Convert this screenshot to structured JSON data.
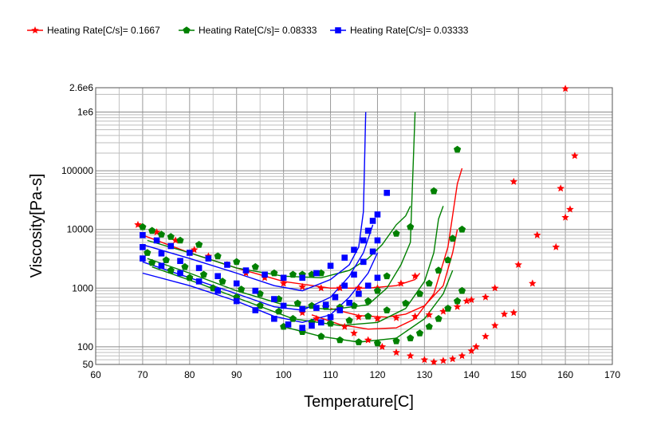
{
  "chart_data": {
    "type": "scatter",
    "xlabel": "Temperature[C]",
    "ylabel": "Viscosity[Pa-s]",
    "x_range": [
      60,
      170
    ],
    "y_range": [
      50,
      2600000
    ],
    "y_scale": "log",
    "grid": true,
    "legend_placement": "top-left",
    "x_ticks": [
      "60",
      "70",
      "80",
      "90",
      "100",
      "110",
      "120",
      "130",
      "140",
      "150",
      "160",
      "170"
    ],
    "y_ticks": [
      {
        "value": 50,
        "label": "50"
      },
      {
        "value": 100,
        "label": "100"
      },
      {
        "value": 1000,
        "label": "1000"
      },
      {
        "value": 10000,
        "label": "10000"
      },
      {
        "value": 100000,
        "label": "100000"
      },
      {
        "value": 1000000,
        "label": "1e6"
      },
      {
        "value": 2600000,
        "label": "2.6e6"
      }
    ],
    "series": [
      {
        "name": "Heating Rate[C/s]= 0.1667",
        "color": "#ff0000",
        "marker": "star",
        "points": [
          [
            69,
            12000
          ],
          [
            73,
            9000
          ],
          [
            77,
            6500
          ],
          [
            81,
            4500
          ],
          [
            84,
            3500
          ],
          [
            88,
            2500
          ],
          [
            92,
            1800
          ],
          [
            96,
            1500
          ],
          [
            100,
            1200
          ],
          [
            104,
            1050
          ],
          [
            108,
            1000
          ],
          [
            112,
            1000
          ],
          [
            116,
            1000
          ],
          [
            120,
            1000
          ],
          [
            125,
            1200
          ],
          [
            128,
            1600
          ],
          [
            104,
            380
          ],
          [
            107,
            300
          ],
          [
            110,
            250
          ],
          [
            113,
            220
          ],
          [
            115,
            170
          ],
          [
            118,
            130
          ],
          [
            121,
            100
          ],
          [
            124,
            80
          ],
          [
            127,
            70
          ],
          [
            130,
            60
          ],
          [
            132,
            55
          ],
          [
            134,
            58
          ],
          [
            136,
            62
          ],
          [
            138,
            70
          ],
          [
            140,
            85
          ],
          [
            141,
            100
          ],
          [
            143,
            150
          ],
          [
            145,
            230
          ],
          [
            147,
            360
          ],
          [
            149,
            380
          ],
          [
            150,
            2500
          ],
          [
            149,
            65000
          ],
          [
            112,
            450
          ],
          [
            116,
            320
          ],
          [
            120,
            300
          ],
          [
            124,
            310
          ],
          [
            128,
            330
          ],
          [
            131,
            350
          ],
          [
            134,
            400
          ],
          [
            137,
            480
          ],
          [
            139,
            600
          ],
          [
            140,
            630
          ],
          [
            143,
            700
          ],
          [
            145,
            1000
          ],
          [
            153,
            1200
          ],
          [
            154,
            8000
          ],
          [
            158,
            5000
          ],
          [
            160,
            16000
          ],
          [
            161,
            22000
          ],
          [
            159,
            50000
          ],
          [
            162,
            180000
          ],
          [
            160,
            2500000
          ]
        ]
      },
      {
        "name": "Heating Rate[C/s]= 0.08333",
        "color": "#008000",
        "marker": "pentagon",
        "points": [
          [
            70,
            11000
          ],
          [
            72,
            9500
          ],
          [
            74,
            8200
          ],
          [
            76,
            7500
          ],
          [
            78,
            6500
          ],
          [
            82,
            5500
          ],
          [
            86,
            3500
          ],
          [
            90,
            2800
          ],
          [
            94,
            2300
          ],
          [
            98,
            1800
          ],
          [
            102,
            1700
          ],
          [
            104,
            1700
          ],
          [
            106,
            1700
          ],
          [
            108,
            1800
          ],
          [
            71,
            4000
          ],
          [
            75,
            3000
          ],
          [
            79,
            2300
          ],
          [
            83,
            1700
          ],
          [
            87,
            1300
          ],
          [
            91,
            950
          ],
          [
            95,
            800
          ],
          [
            99,
            650
          ],
          [
            103,
            550
          ],
          [
            106,
            500
          ],
          [
            109,
            480
          ],
          [
            112,
            470
          ],
          [
            115,
            500
          ],
          [
            118,
            600
          ],
          [
            120,
            900
          ],
          [
            122,
            1600
          ],
          [
            124,
            8500
          ],
          [
            127,
            11000
          ],
          [
            72,
            2700
          ],
          [
            76,
            2000
          ],
          [
            80,
            1500
          ],
          [
            85,
            1000
          ],
          [
            90,
            700
          ],
          [
            95,
            500
          ],
          [
            99,
            400
          ],
          [
            102,
            300
          ],
          [
            106,
            260
          ],
          [
            110,
            250
          ],
          [
            114,
            280
          ],
          [
            118,
            330
          ],
          [
            122,
            420
          ],
          [
            126,
            550
          ],
          [
            129,
            800
          ],
          [
            131,
            1200
          ],
          [
            133,
            2000
          ],
          [
            135,
            3000
          ],
          [
            136,
            7000
          ],
          [
            138,
            10000
          ],
          [
            137,
            230000
          ],
          [
            132,
            45000
          ],
          [
            100,
            220
          ],
          [
            104,
            180
          ],
          [
            108,
            150
          ],
          [
            112,
            130
          ],
          [
            116,
            120
          ],
          [
            120,
            115
          ],
          [
            124,
            125
          ],
          [
            127,
            140
          ],
          [
            129,
            170
          ],
          [
            131,
            220
          ],
          [
            133,
            300
          ],
          [
            135,
            450
          ],
          [
            137,
            600
          ],
          [
            138,
            900
          ]
        ]
      },
      {
        "name": "Heating Rate[C/s]= 0.03333",
        "color": "#0000ff",
        "marker": "square",
        "points": [
          [
            70,
            8000
          ],
          [
            73,
            6500
          ],
          [
            76,
            5200
          ],
          [
            80,
            4000
          ],
          [
            84,
            3200
          ],
          [
            88,
            2500
          ],
          [
            92,
            2000
          ],
          [
            96,
            1700
          ],
          [
            100,
            1500
          ],
          [
            104,
            1500
          ],
          [
            107,
            1800
          ],
          [
            110,
            2400
          ],
          [
            113,
            3300
          ],
          [
            115,
            4500
          ],
          [
            117,
            6500
          ],
          [
            118,
            9500
          ],
          [
            119,
            14000
          ],
          [
            120,
            18000
          ],
          [
            122,
            42000
          ],
          [
            70,
            5000
          ],
          [
            74,
            3900
          ],
          [
            78,
            2900
          ],
          [
            82,
            2200
          ],
          [
            86,
            1600
          ],
          [
            90,
            1200
          ],
          [
            94,
            900
          ],
          [
            98,
            650
          ],
          [
            100,
            500
          ],
          [
            104,
            440
          ],
          [
            107,
            460
          ],
          [
            109,
            520
          ],
          [
            111,
            700
          ],
          [
            113,
            1100
          ],
          [
            115,
            1700
          ],
          [
            117,
            2800
          ],
          [
            119,
            4200
          ],
          [
            120,
            6500
          ],
          [
            70,
            3200
          ],
          [
            74,
            2400
          ],
          [
            78,
            1800
          ],
          [
            82,
            1300
          ],
          [
            86,
            900
          ],
          [
            90,
            600
          ],
          [
            94,
            420
          ],
          [
            98,
            300
          ],
          [
            101,
            240
          ],
          [
            104,
            210
          ],
          [
            106,
            230
          ],
          [
            108,
            260
          ],
          [
            110,
            320
          ],
          [
            112,
            420
          ],
          [
            114,
            560
          ],
          [
            116,
            800
          ],
          [
            118,
            1100
          ],
          [
            120,
            1500
          ]
        ]
      }
    ],
    "lines": [
      {
        "color": "#ff0000",
        "points": [
          [
            70,
            8000
          ],
          [
            80,
            4000
          ],
          [
            90,
            2200
          ],
          [
            100,
            1300
          ],
          [
            110,
            1000
          ],
          [
            118,
            1000
          ],
          [
            124,
            1100
          ],
          [
            128,
            1400
          ],
          [
            129,
            1800
          ]
        ]
      },
      {
        "color": "#ff0000",
        "points": [
          [
            106,
            350
          ],
          [
            112,
            240
          ],
          [
            118,
            200
          ],
          [
            124,
            210
          ],
          [
            128,
            300
          ],
          [
            132,
            800
          ],
          [
            135,
            5000
          ],
          [
            137,
            60000
          ],
          [
            138,
            110000
          ]
        ]
      },
      {
        "color": "#ff0000",
        "points": [
          [
            110,
            450
          ],
          [
            116,
            340
          ],
          [
            122,
            320
          ],
          [
            126,
            360
          ],
          [
            130,
            500
          ],
          [
            134,
            1100
          ],
          [
            136,
            4000
          ],
          [
            137,
            10000
          ]
        ]
      },
      {
        "color": "#008000",
        "points": [
          [
            71,
            6500
          ],
          [
            80,
            4000
          ],
          [
            90,
            2200
          ],
          [
            100,
            1600
          ],
          [
            108,
            1500
          ],
          [
            114,
            2000
          ],
          [
            118,
            3200
          ],
          [
            121,
            5500
          ],
          [
            124,
            12000
          ],
          [
            126,
            17000
          ],
          [
            127,
            25000
          ]
        ]
      },
      {
        "color": "#008000",
        "points": [
          [
            71,
            3200
          ],
          [
            80,
            1800
          ],
          [
            90,
            900
          ],
          [
            100,
            520
          ],
          [
            110,
            430
          ],
          [
            118,
            520
          ],
          [
            122,
            1000
          ],
          [
            125,
            2500
          ],
          [
            127,
            6000
          ],
          [
            128,
            1000000
          ]
        ]
      },
      {
        "color": "#008000",
        "points": [
          [
            72,
            2300
          ],
          [
            82,
            1200
          ],
          [
            92,
            600
          ],
          [
            102,
            300
          ],
          [
            112,
            230
          ],
          [
            120,
            260
          ],
          [
            126,
            450
          ],
          [
            130,
            1300
          ],
          [
            132,
            4000
          ],
          [
            133,
            15000
          ],
          [
            134,
            25000
          ]
        ]
      },
      {
        "color": "#008000",
        "points": [
          [
            100,
            220
          ],
          [
            108,
            150
          ],
          [
            116,
            120
          ],
          [
            124,
            140
          ],
          [
            130,
            300
          ],
          [
            134,
            800
          ],
          [
            136,
            2000
          ]
        ]
      },
      {
        "color": "#0000ff",
        "points": [
          [
            70,
            5500
          ],
          [
            80,
            3200
          ],
          [
            90,
            1800
          ],
          [
            98,
            1100
          ],
          [
            104,
            900
          ],
          [
            110,
            1400
          ],
          [
            114,
            2500
          ],
          [
            116,
            5000
          ],
          [
            117,
            20000
          ],
          [
            117.5,
            1000000
          ]
        ]
      },
      {
        "color": "#0000ff",
        "points": [
          [
            70,
            2800
          ],
          [
            80,
            1500
          ],
          [
            90,
            800
          ],
          [
            98,
            480
          ],
          [
            104,
            420
          ],
          [
            110,
            700
          ],
          [
            114,
            1600
          ],
          [
            117,
            4000
          ],
          [
            119,
            12000
          ]
        ]
      },
      {
        "color": "#0000ff",
        "points": [
          [
            70,
            1800
          ],
          [
            80,
            1100
          ],
          [
            90,
            600
          ],
          [
            98,
            330
          ],
          [
            104,
            260
          ],
          [
            110,
            350
          ],
          [
            114,
            700
          ],
          [
            118,
            1800
          ],
          [
            120,
            4000
          ]
        ]
      }
    ]
  }
}
